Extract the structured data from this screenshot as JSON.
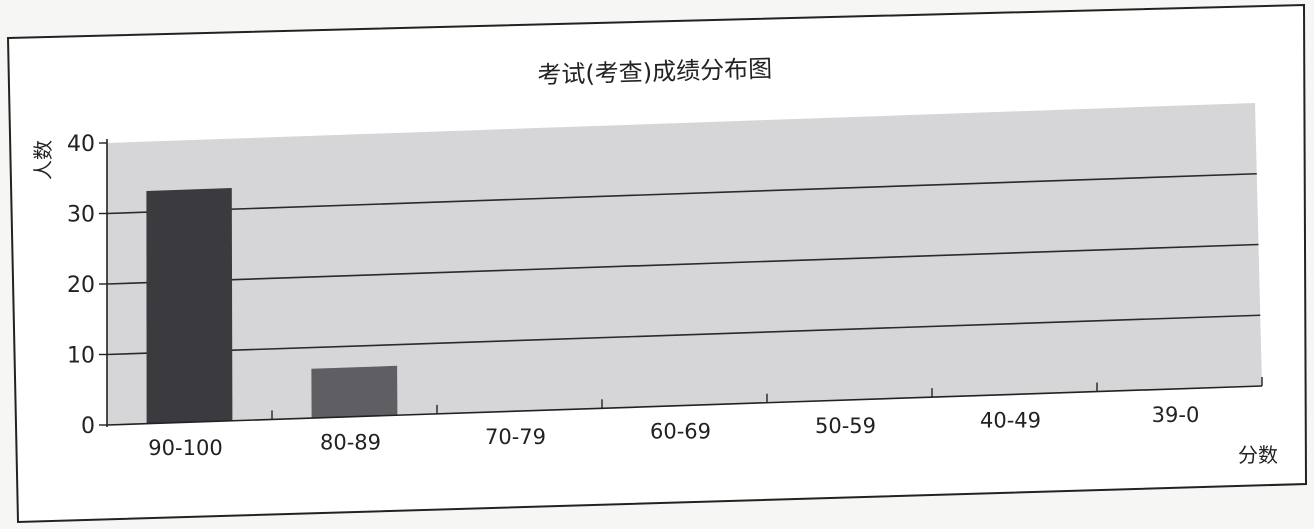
{
  "chart_data": {
    "type": "bar",
    "title": "考试(考查)成绩分布图",
    "xlabel": "分数",
    "ylabel": "人数",
    "categories": [
      "90-100",
      "80-89",
      "70-79",
      "60-69",
      "50-59",
      "40-49",
      "39-0"
    ],
    "values": [
      33,
      7,
      0,
      0,
      0,
      0,
      0
    ],
    "ylim": [
      0,
      40
    ],
    "yticks": [
      0,
      10,
      20,
      30,
      40
    ],
    "grid": true,
    "colors": {
      "bar_primary": "#3b3b3f",
      "bar_secondary": "#5f5f63",
      "plot_bg": "#d6d6d8",
      "grid": "#2a2a2a",
      "border": "#222222"
    }
  }
}
